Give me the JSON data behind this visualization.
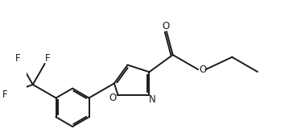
{
  "bg_color": "#ffffff",
  "line_color": "#1a1a1a",
  "line_width": 1.4,
  "font_size": 8.5,
  "figsize": [
    3.64,
    1.7
  ],
  "dpi": 100,
  "xlim": [
    -1.65,
    2.05
  ],
  "ylim": [
    -1.0,
    1.1
  ]
}
